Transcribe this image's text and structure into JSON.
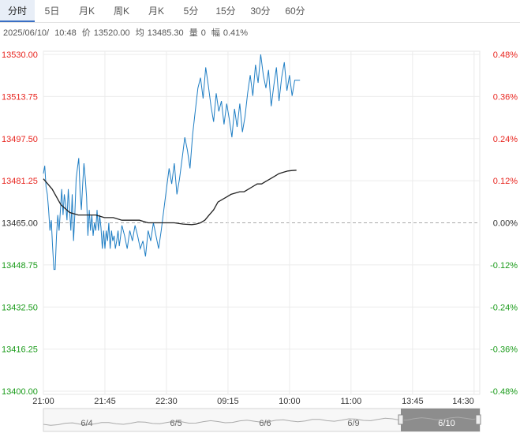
{
  "tabs": [
    {
      "label": "分时",
      "active": true
    },
    {
      "label": "5日",
      "active": false
    },
    {
      "label": "月K",
      "active": false
    },
    {
      "label": "周K",
      "active": false
    },
    {
      "label": "月K",
      "active": false
    },
    {
      "label": "5分",
      "active": false
    },
    {
      "label": "15分",
      "active": false
    },
    {
      "label": "30分",
      "active": false
    },
    {
      "label": "60分",
      "active": false
    }
  ],
  "info": {
    "date": "2025/06/10/",
    "time": "10:48",
    "price_label": "价",
    "price": "13520.00",
    "avg_label": "均",
    "avg": "13485.30",
    "vol_label": "量",
    "vol": "0",
    "chg_label": "幅",
    "chg": "0.41%"
  },
  "chart_data": {
    "type": "line",
    "ylim": [
      13400.0,
      13530.0
    ],
    "reference_price": 13465.0,
    "y_ticks_left": [
      "13530.00",
      "13513.75",
      "13497.50",
      "13481.25",
      "13465.00",
      "13448.75",
      "13432.50",
      "13416.25",
      "13400.00"
    ],
    "y_ticks_right": [
      "0.48%",
      "0.36%",
      "0.24%",
      "0.12%",
      "0.00%",
      "-0.12%",
      "-0.24%",
      "-0.36%",
      "-0.48%"
    ],
    "x_ticks": [
      "21:00",
      "21:45",
      "22:30",
      "09:15",
      "10:00",
      "11:00",
      "13:45",
      "14:30"
    ],
    "x_range": [
      0,
      100
    ],
    "x_tick_positions": [
      0,
      14.1,
      28.2,
      42.3,
      56.4,
      70.5,
      84.6,
      98.7
    ],
    "colors": {
      "up": "#e8251f",
      "down": "#1a9b1a",
      "neutral": "#333333",
      "price_line": "#1f7ec4",
      "avg_line": "#222222",
      "grid": "#ebebeb",
      "ref": "#aaaaaa"
    },
    "series": [
      {
        "role": "price",
        "x": [
          0,
          0.3,
          0.6,
          0.9,
          1.2,
          1.5,
          1.8,
          2.1,
          2.4,
          2.7,
          3.0,
          3.3,
          3.6,
          3.9,
          4.2,
          4.5,
          4.8,
          5.1,
          5.4,
          5.7,
          6.0,
          6.3,
          6.6,
          6.9,
          7.2,
          7.5,
          7.8,
          8.1,
          8.4,
          8.7,
          9.0,
          9.3,
          9.6,
          9.9,
          10.2,
          10.5,
          10.8,
          11.1,
          11.4,
          11.7,
          12.0,
          12.3,
          12.6,
          12.9,
          13.2,
          13.5,
          13.8,
          14.1,
          14.4,
          14.7,
          15.0,
          15.3,
          15.6,
          15.9,
          16.2,
          16.5,
          16.8,
          17.1,
          17.4,
          17.7,
          18.0,
          18.6,
          19.2,
          19.8,
          20.4,
          21.0,
          21.6,
          22.2,
          22.8,
          23.4,
          24.0,
          24.6,
          25.2,
          25.8,
          26.4,
          27.0,
          27.6,
          28.2,
          28.8,
          29.4,
          30.0,
          30.6,
          31.2,
          31.8,
          32.4,
          33.0,
          33.6,
          34.2,
          34.8,
          35.4,
          36.0,
          36.6,
          37.2,
          37.8,
          38.4,
          39.0,
          39.6,
          40.2,
          40.8,
          41.4,
          42.0,
          42.6,
          43.2,
          43.8,
          44.4,
          45.0,
          45.6,
          46.2,
          46.8,
          47.4,
          48.0,
          48.6,
          49.2,
          49.8,
          50.4,
          51.0,
          51.6,
          52.2,
          52.8,
          53.4,
          54.0,
          54.6,
          55.2,
          55.8,
          56.4,
          57.0,
          57.6,
          58.2,
          58.8
        ],
        "values": [
          13484,
          13487,
          13479,
          13476,
          13470,
          13462,
          13466,
          13456,
          13447,
          13447,
          13460,
          13468,
          13462,
          13470,
          13478,
          13468,
          13476,
          13472,
          13466,
          13478,
          13470,
          13462,
          13476,
          13458,
          13468,
          13482,
          13486,
          13490,
          13477,
          13470,
          13480,
          13488,
          13482,
          13475,
          13460,
          13470,
          13462,
          13468,
          13460,
          13465,
          13462,
          13470,
          13462,
          13468,
          13463,
          13455,
          13462,
          13455,
          13462,
          13458,
          13465,
          13455,
          13462,
          13458,
          13460,
          13455,
          13458,
          13462,
          13456,
          13460,
          13464,
          13460,
          13455,
          13462,
          13458,
          13464,
          13460,
          13455,
          13458,
          13452,
          13462,
          13458,
          13465,
          13460,
          13455,
          13462,
          13470,
          13478,
          13486,
          13480,
          13488,
          13476,
          13482,
          13490,
          13498,
          13493,
          13486,
          13499,
          13508,
          13517,
          13521,
          13513,
          13525,
          13518,
          13510,
          13504,
          13515,
          13508,
          13512,
          13503,
          13511,
          13505,
          13498,
          13509,
          13502,
          13511,
          13500,
          13506,
          13515,
          13522,
          13514,
          13526,
          13519,
          13530,
          13522,
          13517,
          13524,
          13510,
          13518,
          13525,
          13512,
          13521,
          13527,
          13516,
          13522,
          13514,
          13520,
          13520,
          13520
        ],
        "name": ""
      },
      {
        "role": "average",
        "x": [
          0,
          2,
          4,
          6,
          8,
          10,
          12,
          14,
          16,
          18,
          20,
          22,
          24,
          26,
          28,
          30,
          32,
          34,
          35,
          36,
          37,
          38,
          39,
          40,
          41,
          42,
          43,
          44,
          45,
          46,
          47,
          48,
          49,
          50,
          51,
          52,
          53,
          54,
          55,
          56,
          57,
          58
        ],
        "values": [
          13482,
          13478,
          13472,
          13469,
          13468,
          13468,
          13468,
          13467,
          13467,
          13466,
          13466,
          13466,
          13465,
          13465,
          13465,
          13465,
          13464.5,
          13464.3,
          13464.5,
          13465,
          13466,
          13468,
          13470,
          13473,
          13474,
          13475,
          13476,
          13476.5,
          13477,
          13477,
          13478,
          13479,
          13480,
          13480,
          13481,
          13482,
          13483,
          13484,
          13484.5,
          13485,
          13485.2,
          13485.3
        ],
        "name": ""
      }
    ],
    "navigator": {
      "labels": [
        "6/4",
        "6/5",
        "6/6",
        "6/9",
        "6/10"
      ],
      "selected": "6/10"
    },
    "xlabel": "",
    "ylabel": "",
    "title": "",
    "grid": true
  }
}
